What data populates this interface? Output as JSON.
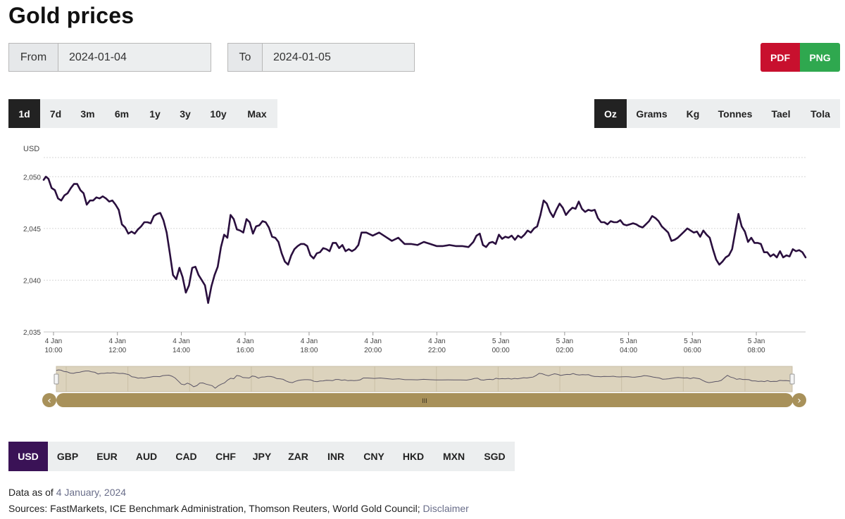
{
  "page": {
    "title": "Gold prices"
  },
  "date_range": {
    "from_label": "From",
    "from_value": "2024-01-04",
    "to_label": "To",
    "to_value": "2024-01-05"
  },
  "export": {
    "pdf_label": "PDF",
    "png_label": "PNG",
    "pdf_color": "#c8102e",
    "png_color": "#2fa84f"
  },
  "ranges": [
    {
      "label": "1d",
      "active": true
    },
    {
      "label": "7d"
    },
    {
      "label": "3m"
    },
    {
      "label": "6m"
    },
    {
      "label": "1y"
    },
    {
      "label": "3y"
    },
    {
      "label": "10y"
    },
    {
      "label": "Max"
    }
  ],
  "units": [
    {
      "label": "Oz",
      "active": true
    },
    {
      "label": "Grams"
    },
    {
      "label": "Kg"
    },
    {
      "label": "Tonnes"
    },
    {
      "label": "Tael"
    },
    {
      "label": "Tola"
    }
  ],
  "currencies": [
    {
      "label": "USD",
      "active": true
    },
    {
      "label": "GBP"
    },
    {
      "label": "EUR"
    },
    {
      "label": "AUD"
    },
    {
      "label": "CAD"
    },
    {
      "label": "CHF"
    },
    {
      "label": "JPY"
    },
    {
      "label": "ZAR"
    },
    {
      "label": "INR"
    },
    {
      "label": "CNY"
    },
    {
      "label": "HKD"
    },
    {
      "label": "MXN"
    },
    {
      "label": "SGD"
    }
  ],
  "footer": {
    "data_as_of_prefix": "Data as of ",
    "data_as_of_date": "4 January, 2024",
    "sources": "Sources: FastMarkets, ICE Benchmark Administration, Thomson Reuters, World Gold Council; ",
    "disclaimer": "Disclaimer"
  },
  "navigator": {
    "handle_glyph": "III",
    "left_arrow": "‹",
    "right_arrow": "›"
  },
  "chart_data": {
    "type": "line",
    "ylabel": "USD",
    "ylim": [
      2035,
      2052.6
    ],
    "yticks": [
      2035,
      2040,
      2045,
      2050
    ],
    "ytick_labels": [
      "2,035",
      "2,040",
      "2,045",
      "2,050"
    ],
    "xlim": [
      10.0,
      33.85
    ],
    "xticks": [
      {
        "x": 10,
        "date": "4 Jan",
        "time": "10:00"
      },
      {
        "x": 12,
        "date": "4 Jan",
        "time": "12:00"
      },
      {
        "x": 14,
        "date": "4 Jan",
        "time": "14:00"
      },
      {
        "x": 16,
        "date": "4 Jan",
        "time": "16:00"
      },
      {
        "x": 18,
        "date": "4 Jan",
        "time": "18:00"
      },
      {
        "x": 20,
        "date": "4 Jan",
        "time": "20:00"
      },
      {
        "x": 22,
        "date": "4 Jan",
        "time": "22:00"
      },
      {
        "x": 24,
        "date": "5 Jan",
        "time": "00:00"
      },
      {
        "x": 26,
        "date": "5 Jan",
        "time": "02:00"
      },
      {
        "x": 28,
        "date": "5 Jan",
        "time": "04:00"
      },
      {
        "x": 30,
        "date": "5 Jan",
        "time": "06:00"
      },
      {
        "x": 32,
        "date": "5 Jan",
        "time": "08:00"
      }
    ],
    "grid": true,
    "line_color": "#2a0f3e",
    "series": [
      {
        "x": [
          10.0,
          10.07,
          10.15,
          10.25,
          10.35,
          10.45,
          10.55,
          10.65,
          10.75,
          10.85,
          10.95,
          11.05,
          11.15,
          11.25,
          11.35,
          11.45,
          11.55,
          11.65,
          11.75,
          11.85,
          11.95,
          12.05,
          12.15,
          12.25,
          12.35,
          12.45,
          12.55,
          12.65,
          12.75,
          12.85,
          12.95,
          13.05,
          13.15,
          13.25,
          13.35,
          13.45,
          13.55,
          13.65,
          13.75,
          13.85,
          13.95,
          14.05,
          14.15,
          14.25,
          14.35,
          14.45,
          14.55,
          14.65,
          14.75,
          14.85,
          14.95,
          15.05,
          15.15,
          15.25,
          15.35,
          15.45,
          15.55,
          15.65,
          15.75,
          15.85,
          15.95,
          16.05,
          16.15,
          16.25,
          16.35,
          16.45,
          16.55,
          16.65,
          16.75,
          16.85,
          16.95,
          17.05,
          17.15,
          17.25,
          17.35,
          17.45,
          17.55,
          17.65,
          17.75,
          17.85,
          17.95,
          18.05,
          18.15,
          18.25,
          18.35,
          18.45,
          18.55,
          18.65,
          18.75,
          18.85,
          18.95,
          19.05,
          19.15,
          19.25,
          19.35,
          19.45,
          19.55,
          19.65,
          19.75,
          19.85,
          19.95,
          20.1,
          20.3,
          20.5,
          20.7,
          20.9,
          21.1,
          21.3,
          21.5,
          21.7,
          21.9,
          22.1,
          22.3,
          22.5,
          22.7,
          22.9,
          23.1,
          23.3,
          23.45,
          23.55,
          23.65,
          23.75,
          23.85,
          23.95,
          24.05,
          24.15,
          24.25,
          24.35,
          24.45,
          24.55,
          24.65,
          24.75,
          24.85,
          24.95,
          25.05,
          25.15,
          25.25,
          25.35,
          25.45,
          25.55,
          25.65,
          25.75,
          25.85,
          25.95,
          26.05,
          26.15,
          26.25,
          26.35,
          26.45,
          26.55,
          26.65,
          26.75,
          26.85,
          26.95,
          27.05,
          27.15,
          27.25,
          27.35,
          27.45,
          27.55,
          27.65,
          27.75,
          27.85,
          27.95,
          28.05,
          28.15,
          28.25,
          28.35,
          28.45,
          28.55,
          28.65,
          28.75,
          28.85,
          28.95,
          29.05,
          29.15,
          29.25,
          29.35,
          29.45,
          29.55,
          29.65,
          29.75,
          29.85,
          29.95,
          30.05,
          30.15,
          30.25,
          30.35,
          30.45,
          30.55,
          30.65,
          30.75,
          30.85,
          30.95,
          31.05,
          31.15,
          31.25,
          31.35,
          31.45,
          31.55,
          31.65,
          31.75,
          31.85,
          31.95,
          32.05,
          32.15,
          32.25,
          32.35,
          32.45,
          32.55,
          32.65,
          32.75,
          32.85,
          32.95,
          33.05,
          33.15,
          33.25,
          33.35,
          33.45,
          33.55,
          33.65,
          33.75,
          33.85
        ],
        "y": [
          2049.7,
          2050.0,
          2049.8,
          2048.9,
          2048.7,
          2047.9,
          2047.7,
          2048.2,
          2048.4,
          2048.9,
          2049.3,
          2049.3,
          2048.7,
          2048.4,
          2047.3,
          2047.7,
          2047.7,
          2048.0,
          2047.9,
          2048.1,
          2047.9,
          2047.6,
          2047.7,
          2047.3,
          2046.8,
          2045.4,
          2045.1,
          2044.5,
          2044.7,
          2044.5,
          2044.9,
          2045.2,
          2045.6,
          2045.6,
          2045.5,
          2046.2,
          2046.4,
          2046.5,
          2045.8,
          2044.6,
          2042.6,
          2040.5,
          2040.1,
          2041.2,
          2040.3,
          2038.8,
          2039.5,
          2041.2,
          2041.3,
          2040.5,
          2040.0,
          2039.5,
          2037.8,
          2039.4,
          2040.5,
          2041.3,
          2043.2,
          2044.4,
          2044.1,
          2046.3,
          2045.9,
          2044.9,
          2044.8,
          2044.6,
          2045.9,
          2045.6,
          2044.5,
          2045.2,
          2045.3,
          2045.7,
          2045.6,
          2045.1,
          2044.2,
          2044.1,
          2043.7,
          2042.6,
          2041.8,
          2041.5,
          2042.4,
          2043.0,
          2043.3,
          2043.5,
          2043.5,
          2043.3,
          2042.4,
          2042.1,
          2042.6,
          2042.7,
          2043.1,
          2043.0,
          2042.8,
          2043.6,
          2043.6,
          2043.1,
          2043.4,
          2042.8,
          2043.0,
          2042.8,
          2043.0,
          2043.4,
          2044.6,
          2044.6,
          2044.3,
          2044.6,
          2044.2,
          2043.8,
          2044.1,
          2043.5,
          2043.5,
          2043.4,
          2043.7,
          2043.5,
          2043.3,
          2043.3,
          2043.4,
          2043.3,
          2043.3,
          2043.2,
          2043.7,
          2044.3,
          2044.5,
          2043.4,
          2043.2,
          2043.6,
          2043.7,
          2043.5,
          2044.4,
          2044.0,
          2044.2,
          2044.1,
          2044.3,
          2043.9,
          2044.3,
          2044.1,
          2044.4,
          2044.8,
          2044.6,
          2045.0,
          2045.2,
          2046.3,
          2047.7,
          2047.4,
          2046.6,
          2046.1,
          2046.8,
          2047.4,
          2047.0,
          2046.3,
          2046.7,
          2047.0,
          2046.9,
          2047.6,
          2046.9,
          2046.6,
          2046.8,
          2046.7,
          2046.8,
          2046.0,
          2045.6,
          2045.6,
          2045.4,
          2045.7,
          2045.6,
          2045.6,
          2045.8,
          2045.4,
          2045.3,
          2045.4,
          2045.5,
          2045.4,
          2045.2,
          2045.1,
          2045.4,
          2045.7,
          2046.2,
          2046.0,
          2045.7,
          2045.2,
          2044.9,
          2044.6,
          2043.8,
          2043.9,
          2044.1,
          2044.4,
          2044.7,
          2045.0,
          2044.8,
          2044.6,
          2044.7,
          2044.2,
          2044.8,
          2044.4,
          2044.1,
          2043.0,
          2042.0,
          2041.5,
          2041.8,
          2042.2,
          2042.4,
          2043.0,
          2044.7,
          2046.4,
          2045.2,
          2044.7,
          2043.7,
          2044.1,
          2043.6,
          2043.6,
          2043.5,
          2042.7,
          2042.7,
          2042.3,
          2042.5,
          2042.2,
          2042.8,
          2042.2,
          2042.4,
          2042.3,
          2043.0,
          2042.8,
          2042.9,
          2042.7,
          2042.2
        ]
      }
    ]
  }
}
